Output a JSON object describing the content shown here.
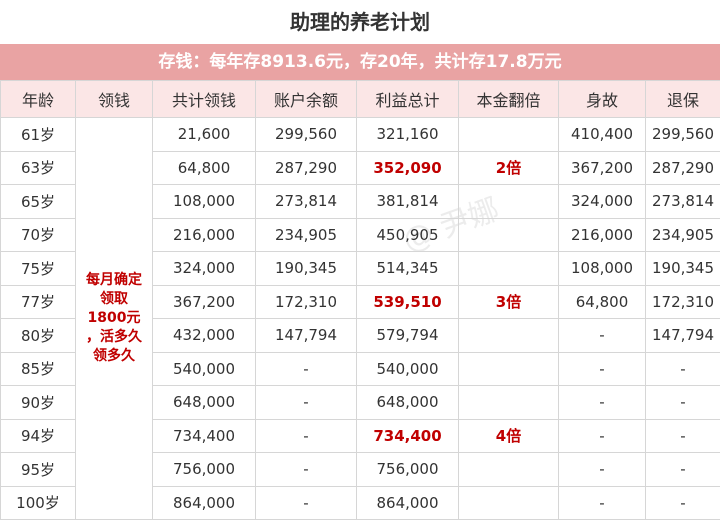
{
  "header": {
    "title": "助理的养老计划",
    "banner": "存钱：每年存8913.6元，存20年，共计存17.8万元"
  },
  "table": {
    "columns": [
      "年龄",
      "领钱",
      "共计领钱",
      "账户余额",
      "利益总计",
      "本金翻倍",
      "身故",
      "退保"
    ],
    "payout_lines": [
      "每月确定",
      "领取",
      "1800元",
      "，活多久",
      "领多久"
    ],
    "rows": [
      [
        "61岁",
        "21,600",
        "299,560",
        "321,160",
        null,
        "410,400",
        "299,560"
      ],
      [
        "63岁",
        "64,800",
        "287,290",
        "352,090",
        "2倍",
        "367,200",
        "287,290"
      ],
      [
        "65岁",
        "108,000",
        "273,814",
        "381,814",
        null,
        "324,000",
        "273,814"
      ],
      [
        "70岁",
        "216,000",
        "234,905",
        "450,905",
        null,
        "216,000",
        "234,905"
      ],
      [
        "75岁",
        "324,000",
        "190,345",
        "514,345",
        null,
        "108,000",
        "190,345"
      ],
      [
        "77岁",
        "367,200",
        "172,310",
        "539,510",
        "3倍",
        "64,800",
        "172,310"
      ],
      [
        "80岁",
        "432,000",
        "147,794",
        "579,794",
        null,
        "-",
        "147,794"
      ],
      [
        "85岁",
        "540,000",
        "-",
        "540,000",
        null,
        "-",
        "-"
      ],
      [
        "90岁",
        "648,000",
        "-",
        "648,000",
        null,
        "-",
        "-"
      ],
      [
        "94岁",
        "734,400",
        "-",
        "734,400",
        "4倍",
        "-",
        "-"
      ],
      [
        "95岁",
        "756,000",
        "-",
        "756,000",
        null,
        "-",
        "-"
      ],
      [
        "100岁",
        "864,000",
        "-",
        "864,000",
        null,
        "-",
        "-"
      ]
    ]
  },
  "watermark": "@ 尹娜"
}
